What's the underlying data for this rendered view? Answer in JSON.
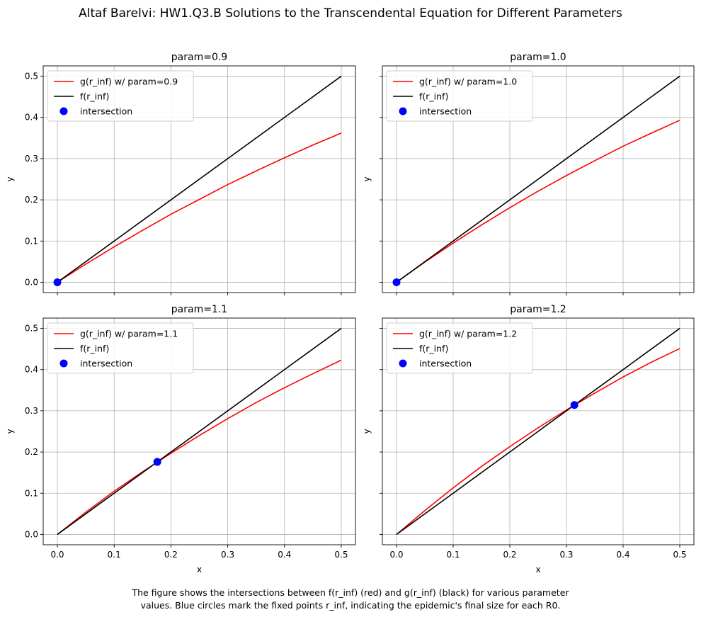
{
  "figure": {
    "suptitle": "Altaf Barelvi: HW1.Q3.B Solutions to the Transcendental Equation for Different Parameters",
    "caption_lines": [
      "The figure shows the intersections between f(r_inf) (red) and g(r_inf) (black) for various parameter",
      "values. Blue circles mark the fixed points r_inf, indicating the epidemic's final size for each R0."
    ]
  },
  "colors": {
    "g_curve": "#ff0000",
    "f_line": "#000000",
    "intersection": "#0000ff",
    "grid": "#b0b0b0"
  },
  "chart_data": [
    {
      "type": "line",
      "title": "param=0.9",
      "xlabel": "",
      "ylabel": "y",
      "xlim": [
        -0.025,
        0.525
      ],
      "ylim": [
        -0.025,
        0.525
      ],
      "xticks": [
        "0.0",
        "0.1",
        "0.2",
        "0.3",
        "0.4",
        "0.5"
      ],
      "yticks": [
        "0.0",
        "0.1",
        "0.2",
        "0.3",
        "0.4",
        "0.5"
      ],
      "show_xtick_labels": false,
      "show_ytick_labels": true,
      "grid": true,
      "legend": "upper-left",
      "series": [
        {
          "name": "g(r_inf) w/ param=0.9",
          "color": "#ff0000",
          "x": [
            0,
            0.05,
            0.1,
            0.15,
            0.2,
            0.25,
            0.3,
            0.35,
            0.4,
            0.45,
            0.5
          ],
          "y": [
            0,
            0.044,
            0.086,
            0.126,
            0.165,
            0.201,
            0.237,
            0.27,
            0.302,
            0.333,
            0.362
          ]
        },
        {
          "name": "f(r_inf)",
          "color": "#000000",
          "x": [
            0,
            0.5
          ],
          "y": [
            0,
            0.5
          ]
        }
      ],
      "points": {
        "name": "intersection",
        "color": "#0000ff",
        "x": [
          0
        ],
        "y": [
          0
        ]
      }
    },
    {
      "type": "line",
      "title": "param=1.0",
      "xlabel": "",
      "ylabel": "y",
      "xlim": [
        -0.025,
        0.525
      ],
      "ylim": [
        -0.025,
        0.525
      ],
      "xticks": [
        "0.0",
        "0.1",
        "0.2",
        "0.3",
        "0.4",
        "0.5"
      ],
      "yticks": [
        "0.0",
        "0.1",
        "0.2",
        "0.3",
        "0.4",
        "0.5"
      ],
      "show_xtick_labels": false,
      "show_ytick_labels": false,
      "grid": true,
      "legend": "upper-left",
      "series": [
        {
          "name": "g(r_inf) w/ param=1.0",
          "color": "#ff0000",
          "x": [
            0,
            0.05,
            0.1,
            0.15,
            0.2,
            0.25,
            0.3,
            0.35,
            0.4,
            0.45,
            0.5
          ],
          "y": [
            0,
            0.049,
            0.095,
            0.139,
            0.181,
            0.221,
            0.259,
            0.295,
            0.33,
            0.362,
            0.393
          ]
        },
        {
          "name": "f(r_inf)",
          "color": "#000000",
          "x": [
            0,
            0.5
          ],
          "y": [
            0,
            0.5
          ]
        }
      ],
      "points": {
        "name": "intersection",
        "color": "#0000ff",
        "x": [
          0
        ],
        "y": [
          0
        ]
      }
    },
    {
      "type": "line",
      "title": "param=1.1",
      "xlabel": "x",
      "ylabel": "y",
      "xlim": [
        -0.025,
        0.525
      ],
      "ylim": [
        -0.025,
        0.525
      ],
      "xticks": [
        "0.0",
        "0.1",
        "0.2",
        "0.3",
        "0.4",
        "0.5"
      ],
      "yticks": [
        "0.0",
        "0.1",
        "0.2",
        "0.3",
        "0.4",
        "0.5"
      ],
      "show_xtick_labels": true,
      "show_ytick_labels": true,
      "grid": true,
      "legend": "upper-left",
      "series": [
        {
          "name": "g(r_inf) w/ param=1.1",
          "color": "#ff0000",
          "x": [
            0,
            0.05,
            0.1,
            0.15,
            0.2,
            0.25,
            0.3,
            0.35,
            0.4,
            0.45,
            0.5
          ],
          "y": [
            0,
            0.054,
            0.105,
            0.152,
            0.197,
            0.24,
            0.281,
            0.32,
            0.356,
            0.39,
            0.423
          ]
        },
        {
          "name": "f(r_inf)",
          "color": "#000000",
          "x": [
            0,
            0.5
          ],
          "y": [
            0,
            0.5
          ]
        }
      ],
      "points": {
        "name": "intersection",
        "color": "#0000ff",
        "x": [
          0.176
        ],
        "y": [
          0.176
        ]
      }
    },
    {
      "type": "line",
      "title": "param=1.2",
      "xlabel": "x",
      "ylabel": "y",
      "xlim": [
        -0.025,
        0.525
      ],
      "ylim": [
        -0.025,
        0.525
      ],
      "xticks": [
        "0.0",
        "0.1",
        "0.2",
        "0.3",
        "0.4",
        "0.5"
      ],
      "yticks": [
        "0.0",
        "0.1",
        "0.2",
        "0.3",
        "0.4",
        "0.5"
      ],
      "show_xtick_labels": true,
      "show_ytick_labels": false,
      "grid": true,
      "legend": "upper-left",
      "series": [
        {
          "name": "g(r_inf) w/ param=1.2",
          "color": "#ff0000",
          "x": [
            0,
            0.05,
            0.1,
            0.15,
            0.2,
            0.25,
            0.3,
            0.35,
            0.4,
            0.45,
            0.5
          ],
          "y": [
            0,
            0.058,
            0.113,
            0.165,
            0.213,
            0.259,
            0.302,
            0.343,
            0.382,
            0.418,
            0.451
          ]
        },
        {
          "name": "f(r_inf)",
          "color": "#000000",
          "x": [
            0,
            0.5
          ],
          "y": [
            0,
            0.5
          ]
        }
      ],
      "points": {
        "name": "intersection",
        "color": "#0000ff",
        "x": [
          0.314
        ],
        "y": [
          0.314
        ]
      }
    }
  ]
}
